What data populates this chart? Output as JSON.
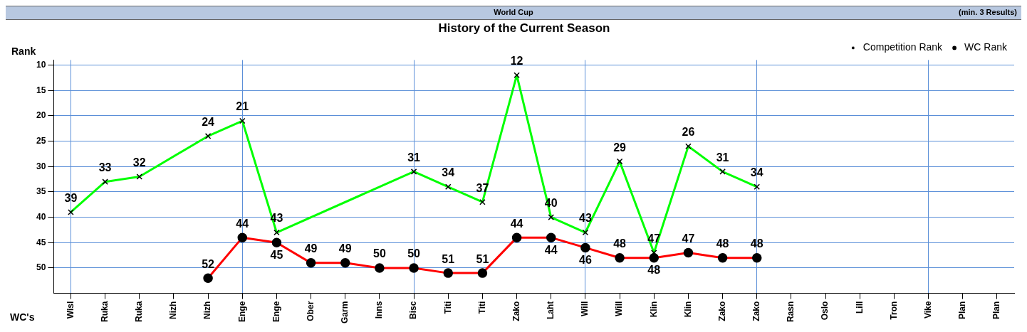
{
  "chart_data": {
    "type": "line",
    "title": "History of the Current Season",
    "ylabel": "Rank",
    "xlabel": "WC's",
    "annotations": [
      "World Cup",
      "(min. 3 Results)"
    ],
    "categories": [
      "Wisl",
      "Ruka",
      "Ruka",
      "Nizh",
      "Nizh",
      "Enge",
      "Enge",
      "Ober",
      "Garm",
      "Inns",
      "Bisc",
      "Titi",
      "Titi",
      "Zako",
      "Laht",
      "Will",
      "Will",
      "Klin",
      "Klin",
      "Zako",
      "Zako",
      "Rasn",
      "Oslo",
      "Lill",
      "Tron",
      "Vike",
      "Plan",
      "Plan"
    ],
    "series": [
      {
        "name": "Competition Rank",
        "color": "#00ff00",
        "marker": "cross",
        "values": [
          39,
          33,
          32,
          null,
          24,
          21,
          43,
          null,
          null,
          null,
          31,
          34,
          37,
          12,
          40,
          43,
          29,
          47,
          26,
          31,
          34,
          null,
          null,
          null,
          null,
          null,
          null,
          null
        ]
      },
      {
        "name": "WC Rank",
        "color": "#ff0000",
        "marker": "circle",
        "values": [
          null,
          null,
          null,
          null,
          52,
          44,
          45,
          49,
          49,
          50,
          50,
          51,
          51,
          44,
          44,
          46,
          48,
          48,
          47,
          48,
          48,
          null,
          null,
          null,
          null,
          null,
          null,
          null
        ]
      }
    ],
    "ylim": [
      55,
      9
    ],
    "yticks": [
      10,
      15,
      20,
      25,
      30,
      35,
      40,
      45,
      50
    ],
    "grid": true,
    "legend": "top right",
    "data_labels": true
  }
}
